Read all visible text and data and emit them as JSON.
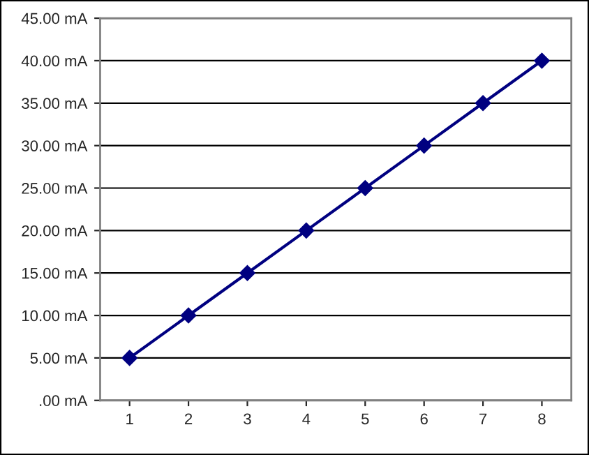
{
  "chart_data": {
    "type": "line",
    "categories": [
      "1",
      "2",
      "3",
      "4",
      "5",
      "6",
      "7",
      "8"
    ],
    "series": [
      {
        "color": "#000080",
        "values": [
          5,
          10,
          15,
          20,
          25,
          30,
          35,
          40
        ]
      }
    ],
    "ylim": [
      0,
      45
    ],
    "yticks": [
      {
        "value": 0,
        "label": ".00 mA"
      },
      {
        "value": 5,
        "label": "5.00 mA"
      },
      {
        "value": 10,
        "label": "10.00 mA"
      },
      {
        "value": 15,
        "label": "15.00 mA"
      },
      {
        "value": 20,
        "label": "20.00 mA"
      },
      {
        "value": 25,
        "label": "25.00 mA"
      },
      {
        "value": 30,
        "label": "30.00 mA"
      },
      {
        "value": 35,
        "label": "35.00 mA"
      },
      {
        "value": 40,
        "label": "40.00 mA"
      },
      {
        "value": 45,
        "label": "45.00 mA"
      }
    ],
    "grid": "y",
    "marker": "diamond",
    "line_style": "solid"
  }
}
